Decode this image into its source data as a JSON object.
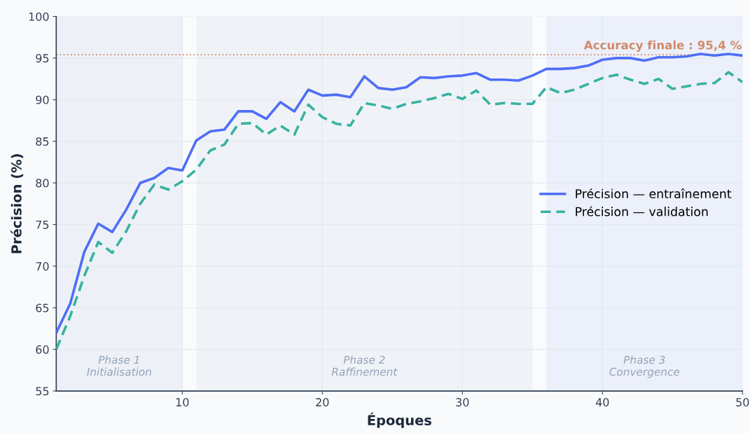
{
  "chart_data": {
    "type": "line",
    "xlabel": "Époques",
    "ylabel": "Précision (%)",
    "x": [
      1,
      2,
      3,
      4,
      5,
      6,
      7,
      8,
      9,
      10,
      11,
      12,
      13,
      14,
      15,
      16,
      17,
      18,
      19,
      20,
      21,
      22,
      23,
      24,
      25,
      26,
      27,
      28,
      29,
      30,
      31,
      32,
      33,
      34,
      35,
      36,
      37,
      38,
      39,
      40,
      41,
      42,
      43,
      44,
      45,
      46,
      47,
      48,
      49,
      50
    ],
    "series": [
      {
        "name": "Précision — entraînement",
        "color": "#4f6ef7",
        "line_style": "solid",
        "values": [
          62,
          65.5,
          71.7,
          75.1,
          74.1,
          76.8,
          80,
          80.6,
          81.8,
          81.5,
          85.1,
          86.2,
          86.4,
          88.6,
          88.6,
          87.7,
          89.7,
          88.6,
          91.2,
          90.5,
          90.6,
          90.3,
          92.8,
          91.4,
          91.2,
          91.5,
          92.7,
          92.6,
          92.8,
          92.9,
          93.2,
          92.4,
          92.4,
          92.3,
          92.9,
          93.7,
          93.7,
          93.8,
          94.1,
          94.8,
          95.0,
          95.0,
          94.7,
          95.1,
          95.1,
          95.2,
          95.5,
          95.3,
          95.5,
          95.3
        ]
      },
      {
        "name": "Précision — validation",
        "color": "#38b2a0",
        "line_style": "dashed",
        "values": [
          60,
          64,
          68.8,
          72.9,
          71.6,
          74.2,
          77.5,
          79.8,
          79.2,
          80.2,
          81.6,
          83.9,
          84.6,
          87.1,
          87.2,
          85.8,
          86.9,
          85.8,
          89.4,
          87.9,
          87.1,
          86.9,
          89.6,
          89.3,
          88.9,
          89.5,
          89.8,
          90.2,
          90.7,
          90.1,
          91.1,
          89.4,
          89.6,
          89.5,
          89.5,
          91.5,
          90.8,
          91.2,
          91.9,
          92.6,
          93.0,
          92.4,
          91.9,
          92.5,
          91.3,
          91.6,
          91.9,
          92.0,
          93.3,
          92.1
        ]
      }
    ],
    "xlim": [
      1,
      50
    ],
    "xticks": [
      10,
      20,
      30,
      40,
      50
    ],
    "ylim": [
      55,
      100
    ],
    "yticks": [
      55,
      60,
      65,
      70,
      75,
      80,
      85,
      90,
      95,
      100
    ],
    "ref_lines": [
      {
        "axis": "y",
        "value": 95.4,
        "label": "Accuracy finale : 95,4 %",
        "color": "#d08a68",
        "line_style": "dotted"
      }
    ],
    "bands": [
      {
        "axis": "x",
        "from": 1,
        "to": 10,
        "label": "Phase 1\nInitialisation",
        "color": "#edf1f7"
      },
      {
        "axis": "x",
        "from": 11,
        "to": 35,
        "label": "Phase 2\nRaffinement",
        "color": "#eff3f8"
      },
      {
        "axis": "x",
        "from": 36,
        "to": 50,
        "label": "Phase 3\nConvergence",
        "color": "#ecf0fa"
      }
    ],
    "grid": true,
    "legend": "right",
    "marker": "none"
  }
}
